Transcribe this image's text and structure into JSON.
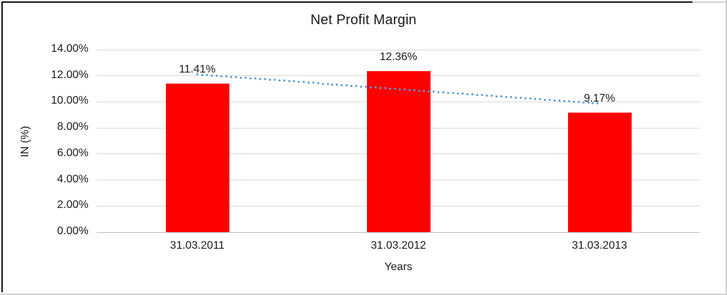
{
  "chart_data": {
    "type": "bar",
    "title": "Net Profit Margin",
    "xlabel": "Years",
    "ylabel": "IN (%)",
    "categories": [
      "31.03.2011",
      "31.03.2012",
      "31.03.2013"
    ],
    "values": [
      11.41,
      12.36,
      9.17
    ],
    "value_labels": [
      "11.41%",
      "12.36%",
      "9.17%"
    ],
    "ylim": [
      0,
      14
    ],
    "ytick_step": 2,
    "ytick_labels": [
      "0.00%",
      "2.00%",
      "4.00%",
      "6.00%",
      "8.00%",
      "10.00%",
      "12.00%",
      "14.00%"
    ],
    "grid": true,
    "legend": "none",
    "bar_color": "#ff0000",
    "gridline_color": "#d9d9d9",
    "axis_line_color": "#bfbfbf",
    "trendline": {
      "type": "linear",
      "start_value": 12.1,
      "end_value": 9.86,
      "style": "dotted",
      "color": "#5b9bd5"
    }
  }
}
